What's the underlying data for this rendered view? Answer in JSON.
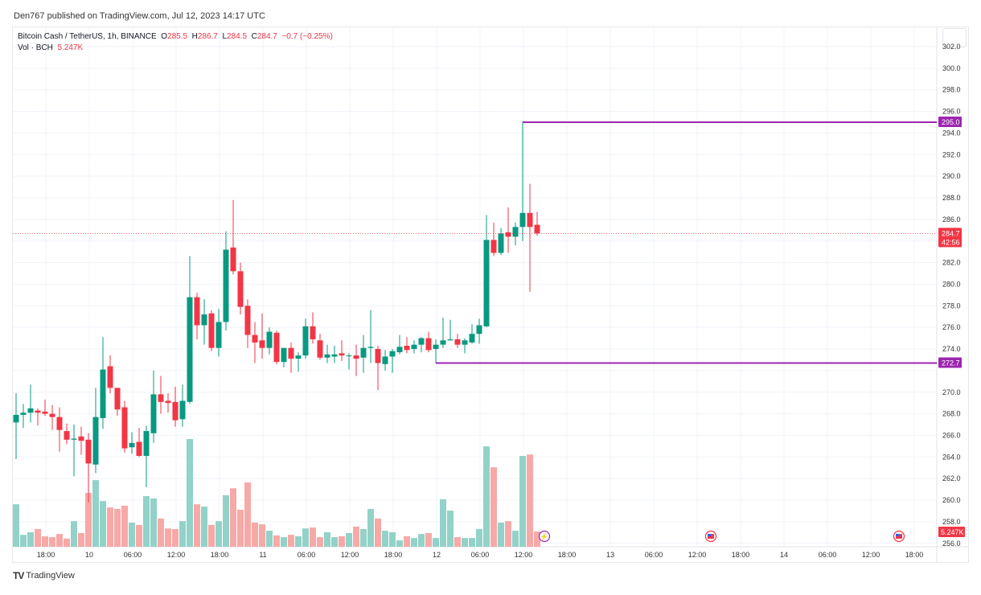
{
  "published": "Den767 published on TradingView.com, Jul 12, 2023 14:17 UTC",
  "legend": {
    "symbol": "Bitcoin Cash / TetherUS, 1h, BINANCE",
    "o_label": "O",
    "o": "285.5",
    "h_label": "H",
    "h": "286.7",
    "l_label": "L",
    "l": "284.5",
    "c_label": "C",
    "c": "284.7",
    "change": "−0.7 (−0.25%)",
    "vol_label": "Vol · BCH",
    "vol": "5.247K"
  },
  "brand": "TradingView",
  "colors": {
    "up": "#089981",
    "down": "#f23645",
    "up_vol": "#92d2c8",
    "down_vol": "#f7a9a7",
    "level": "#9c27b0",
    "grid": "#f0f3fa"
  },
  "chart_data": {
    "type": "candlestick",
    "interval": "1h",
    "first_bar": "Jul 9 14:00",
    "ylim": [
      255,
      303
    ],
    "y_ticks": [
      302,
      300,
      298,
      296,
      294,
      292,
      290,
      288,
      286,
      284,
      282,
      280,
      278,
      276,
      274,
      272,
      270,
      268,
      266,
      264,
      262,
      260,
      258,
      256
    ],
    "x_ticks": [
      "18:00",
      "10",
      "06:00",
      "12:00",
      "18:00",
      "11",
      "06:00",
      "12:00",
      "18:00",
      "12",
      "06:00",
      "12:00",
      "18:00",
      "13",
      "06:00",
      "12:00",
      "18:00",
      "14",
      "06:00",
      "12:00",
      "18:00"
    ],
    "ohlc": [
      [
        267.2,
        269.9,
        263.8,
        267.9
      ],
      [
        267.9,
        268.9,
        266.7,
        268.1
      ],
      [
        268.1,
        270.7,
        267.2,
        268.5
      ],
      [
        268.3,
        268.5,
        266.9,
        268.1
      ],
      [
        268.2,
        269.3,
        267.8,
        268.0
      ],
      [
        268.0,
        268.8,
        266.5,
        267.7
      ],
      [
        267.7,
        268.6,
        264.5,
        266.5
      ],
      [
        266.4,
        267.1,
        265.2,
        265.6
      ],
      [
        265.6,
        267.0,
        262.2,
        265.7
      ],
      [
        265.9,
        266.8,
        264.2,
        265.5
      ],
      [
        265.6,
        266.2,
        259.8,
        263.4
      ],
      [
        263.3,
        270.4,
        262.5,
        267.7
      ],
      [
        267.6,
        275.1,
        266.6,
        272.1
      ],
      [
        272.4,
        273.4,
        269.9,
        270.4
      ],
      [
        270.4,
        270.4,
        267.8,
        268.4
      ],
      [
        268.6,
        269.2,
        264.4,
        264.8
      ],
      [
        264.9,
        266.3,
        264.3,
        265.3
      ],
      [
        265.4,
        266.7,
        264.0,
        264.1
      ],
      [
        264.1,
        266.9,
        261.2,
        266.4
      ],
      [
        266.2,
        272.0,
        265.3,
        269.8
      ],
      [
        269.8,
        271.5,
        268.0,
        269.1
      ],
      [
        269.2,
        269.9,
        268.1,
        269.0
      ],
      [
        269.1,
        270.5,
        266.8,
        267.4
      ],
      [
        267.5,
        270.7,
        266.8,
        269.2
      ],
      [
        269.1,
        282.6,
        268.9,
        278.8
      ],
      [
        278.8,
        279.2,
        274.9,
        276.2
      ],
      [
        276.2,
        278.6,
        274.4,
        277.2
      ],
      [
        277.3,
        277.6,
        273.8,
        274.1
      ],
      [
        274.1,
        277.7,
        273.3,
        276.5
      ],
      [
        276.5,
        284.9,
        275.7,
        283.2
      ],
      [
        283.4,
        287.8,
        280.9,
        281.2
      ],
      [
        281.2,
        282.0,
        277.2,
        277.9
      ],
      [
        278.0,
        278.6,
        274.1,
        275.3
      ],
      [
        275.3,
        276.5,
        272.7,
        274.6
      ],
      [
        274.8,
        277.3,
        273.1,
        274.1
      ],
      [
        274.1,
        276.0,
        273.5,
        275.6
      ],
      [
        275.5,
        275.7,
        272.6,
        272.8
      ],
      [
        272.8,
        274.1,
        272.3,
        274.1
      ],
      [
        274.1,
        274.6,
        271.8,
        273.1
      ],
      [
        273.1,
        273.7,
        271.9,
        273.4
      ],
      [
        273.4,
        276.8,
        273.1,
        276.1
      ],
      [
        276.1,
        277.4,
        274.5,
        274.9
      ],
      [
        274.8,
        275.4,
        273.0,
        273.2
      ],
      [
        273.2,
        274.4,
        272.7,
        273.5
      ],
      [
        273.3,
        274.3,
        272.7,
        273.5
      ],
      [
        273.6,
        274.8,
        272.9,
        273.4
      ],
      [
        273.4,
        273.6,
        272.1,
        273.4
      ],
      [
        273.4,
        274.4,
        271.5,
        273.1
      ],
      [
        273.2,
        275.3,
        271.8,
        274.1
      ],
      [
        274.1,
        277.6,
        272.7,
        274.2
      ],
      [
        274.0,
        274.3,
        270.2,
        272.7
      ],
      [
        272.6,
        273.9,
        272.0,
        273.3
      ],
      [
        273.3,
        274.0,
        271.8,
        273.8
      ],
      [
        273.7,
        275.3,
        273.5,
        274.2
      ],
      [
        274.3,
        275.1,
        273.6,
        273.9
      ],
      [
        274.0,
        274.8,
        273.6,
        274.4
      ],
      [
        274.4,
        275.1,
        273.7,
        275.0
      ],
      [
        275.0,
        275.6,
        273.7,
        273.9
      ],
      [
        274.0,
        274.9,
        272.7,
        274.4
      ],
      [
        274.4,
        276.9,
        274.1,
        274.8
      ],
      [
        274.8,
        276.7,
        274.8,
        274.9
      ],
      [
        274.9,
        275.4,
        274.1,
        274.4
      ],
      [
        274.4,
        275.0,
        273.6,
        274.8
      ],
      [
        274.6,
        276.3,
        274.5,
        275.4
      ],
      [
        275.4,
        276.8,
        274.5,
        276.2
      ],
      [
        276.1,
        286.4,
        276.0,
        284.1
      ],
      [
        284.1,
        285.7,
        282.6,
        282.9
      ],
      [
        282.9,
        285.2,
        282.7,
        284.7
      ],
      [
        284.8,
        287.1,
        282.9,
        284.4
      ],
      [
        284.4,
        285.7,
        283.6,
        285.3
      ],
      [
        285.3,
        295.0,
        284.0,
        286.6
      ],
      [
        286.6,
        289.3,
        279.3,
        285.3
      ],
      [
        285.5,
        286.7,
        284.5,
        284.7
      ]
    ],
    "volume_k": [
      14.6,
      4.1,
      5.0,
      6.1,
      3.6,
      3.3,
      4.4,
      2.8,
      8.8,
      4.7,
      18.5,
      22.9,
      15.7,
      13.5,
      13.0,
      14.1,
      8.3,
      7.5,
      17.4,
      16.6,
      9.7,
      6.3,
      6.1,
      8.8,
      37.0,
      14.6,
      13.8,
      7.5,
      8.8,
      17.7,
      20.1,
      12.7,
      22.1,
      8.3,
      7.7,
      5.5,
      3.9,
      3.3,
      4.1,
      3.6,
      6.3,
      6.6,
      3.3,
      5.0,
      3.3,
      3.6,
      4.7,
      6.9,
      6.1,
      13.0,
      9.7,
      5.5,
      5.0,
      2.2,
      3.6,
      3.0,
      4.4,
      4.7,
      3.0,
      16.3,
      12.4,
      3.3,
      3.0,
      3.0,
      6.1,
      34.5,
      27.3,
      8.3,
      8.8,
      5.5,
      31.2,
      31.7,
      5.247
    ],
    "levels": [
      {
        "price": 295.0,
        "label": "295.0",
        "from_bar": 70
      },
      {
        "price": 272.7,
        "label": "272.7",
        "from_bar": 58
      }
    ],
    "last_price": {
      "label": "284.7",
      "countdown": "42:56",
      "price": 284.7
    },
    "volume_label": "5.247K",
    "events": [
      {
        "type": "lightning-icon",
        "bar": 73
      },
      {
        "type": "us-flag-icon",
        "bar": 96
      },
      {
        "type": "us-flag-icon",
        "bar": 122
      }
    ]
  }
}
